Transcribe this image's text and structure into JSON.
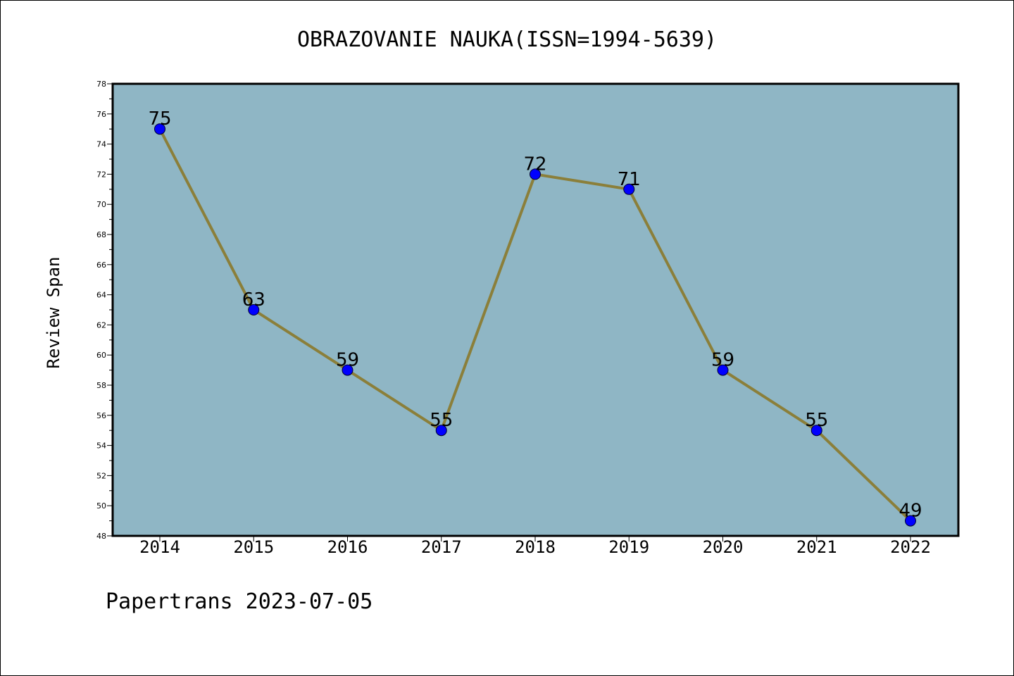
{
  "chart_data": {
    "type": "line",
    "title": "OBRAZOVANIE NAUKA(ISSN=1994-5639)",
    "xlabel": "",
    "ylabel": "Review Span",
    "categories": [
      "2014",
      "2015",
      "2016",
      "2017",
      "2018",
      "2019",
      "2020",
      "2021",
      "2022"
    ],
    "series": [
      {
        "values": [
          75,
          63,
          59,
          55,
          72,
          71,
          59,
          55,
          49
        ]
      }
    ],
    "ylim": [
      48,
      78
    ],
    "yticks": [
      48,
      50,
      52,
      54,
      56,
      58,
      60,
      62,
      64,
      66,
      68,
      70,
      72,
      74,
      76,
      78
    ],
    "grid": false,
    "legend": "none",
    "data_labels": true,
    "footer": "Papertrans 2023-07-05",
    "colors": {
      "plot_background": "#8fb6c5",
      "line": "#8b7f3a",
      "marker": "#0000ff",
      "axis": "#000000",
      "text": "#000000"
    }
  }
}
